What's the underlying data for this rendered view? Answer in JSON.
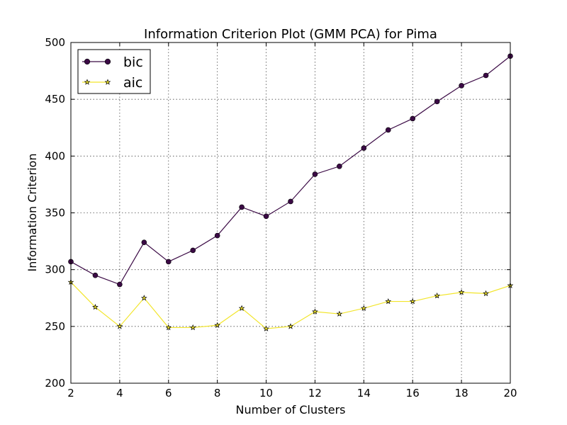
{
  "chart_data": {
    "type": "line",
    "title": "Information Criterion Plot (GMM PCA) for Pima",
    "xlabel": "Number of Clusters",
    "ylabel": "Information Criterion",
    "xlim": [
      2,
      20
    ],
    "ylim": [
      200,
      500
    ],
    "xticks": [
      "2",
      "4",
      "6",
      "8",
      "10",
      "12",
      "14",
      "16",
      "18",
      "20"
    ],
    "yticks": [
      "200",
      "250",
      "300",
      "350",
      "400",
      "450",
      "500"
    ],
    "grid": true,
    "legend_position": "top-left",
    "x": [
      2,
      3,
      4,
      5,
      6,
      7,
      8,
      9,
      10,
      11,
      12,
      13,
      14,
      15,
      16,
      17,
      18,
      19,
      20
    ],
    "series": [
      {
        "name": "bic",
        "color": "#3b0a45",
        "marker": "circle",
        "values": [
          307,
          295,
          287,
          324,
          307,
          317,
          330,
          355,
          347,
          360,
          384,
          391,
          407,
          423,
          433,
          448,
          462,
          471,
          488
        ]
      },
      {
        "name": "aic",
        "color": "#f2e52a",
        "marker": "star",
        "values": [
          289,
          267,
          250,
          275,
          249,
          249,
          251,
          266,
          248,
          250,
          263,
          261,
          266,
          272,
          272,
          277,
          280,
          279,
          286
        ]
      }
    ]
  }
}
